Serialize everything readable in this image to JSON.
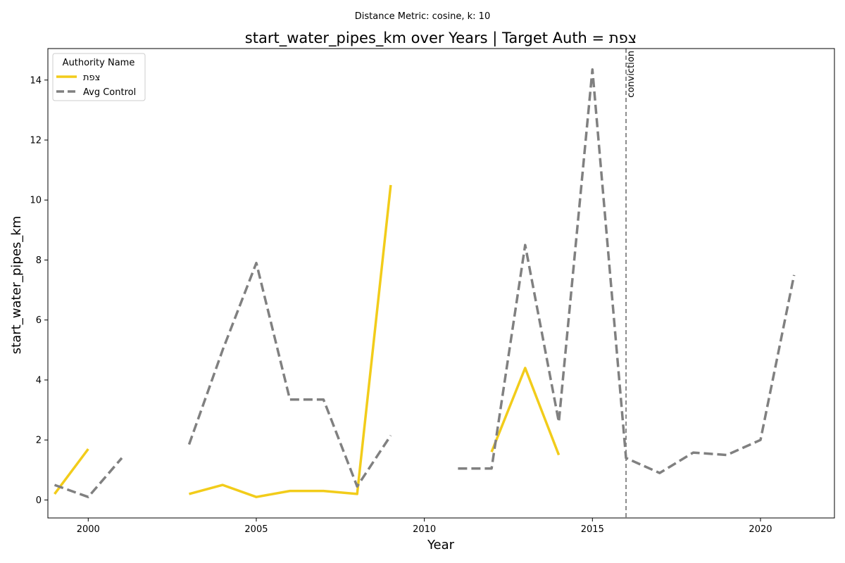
{
  "chart_data": {
    "type": "line",
    "subtitle": "Distance Metric: cosine, k: 10",
    "title": "start_water_pipes_km over Years | Target Auth = צפת",
    "xlabel": "Year",
    "ylabel": "start_water_pipes_km",
    "xlim": [
      1998.8,
      2022.2
    ],
    "ylim": [
      -0.6,
      15.05
    ],
    "xticks": [
      2000,
      2005,
      2010,
      2015,
      2020
    ],
    "yticks": [
      0,
      2,
      4,
      6,
      8,
      10,
      12,
      14
    ],
    "grid": false,
    "legend": {
      "title": "Authority Name",
      "placement": "top-left"
    },
    "series": [
      {
        "name": "צפת",
        "color": "#f2cc1a",
        "style": "solid",
        "points": [
          [
            1999,
            0.2
          ],
          [
            2000,
            1.7
          ],
          [
            2001,
            null
          ],
          [
            2002,
            null
          ],
          [
            2003,
            0.2
          ],
          [
            2004,
            0.5
          ],
          [
            2005,
            0.1
          ],
          [
            2006,
            0.3
          ],
          [
            2007,
            0.3
          ],
          [
            2008,
            0.2
          ],
          [
            2009,
            10.5
          ],
          [
            2010,
            null
          ],
          [
            2011,
            null
          ],
          [
            2012,
            1.6
          ],
          [
            2013,
            4.4
          ],
          [
            2014,
            1.5
          ]
        ]
      },
      {
        "name": "Avg Control",
        "color": "#808080",
        "style": "dashed",
        "points": [
          [
            1999,
            0.5
          ],
          [
            2000,
            0.1
          ],
          [
            2001,
            1.4
          ],
          [
            2002,
            null
          ],
          [
            2003,
            1.85
          ],
          [
            2004,
            5.0
          ],
          [
            2005,
            7.9
          ],
          [
            2006,
            3.35
          ],
          [
            2007,
            3.35
          ],
          [
            2008,
            0.45
          ],
          [
            2009,
            2.15
          ],
          [
            2010,
            null
          ],
          [
            2011,
            1.05
          ],
          [
            2012,
            1.05
          ],
          [
            2013,
            8.5
          ],
          [
            2014,
            2.6
          ],
          [
            2015,
            14.35
          ],
          [
            2016,
            1.4
          ],
          [
            2017,
            0.9
          ],
          [
            2018,
            1.58
          ],
          [
            2019,
            1.5
          ],
          [
            2020,
            2.0
          ],
          [
            2021,
            7.5
          ]
        ]
      }
    ],
    "annotations": [
      {
        "type": "vline",
        "x": 2016,
        "label": "conviction",
        "color": "#808080",
        "style": "dashed"
      }
    ]
  }
}
